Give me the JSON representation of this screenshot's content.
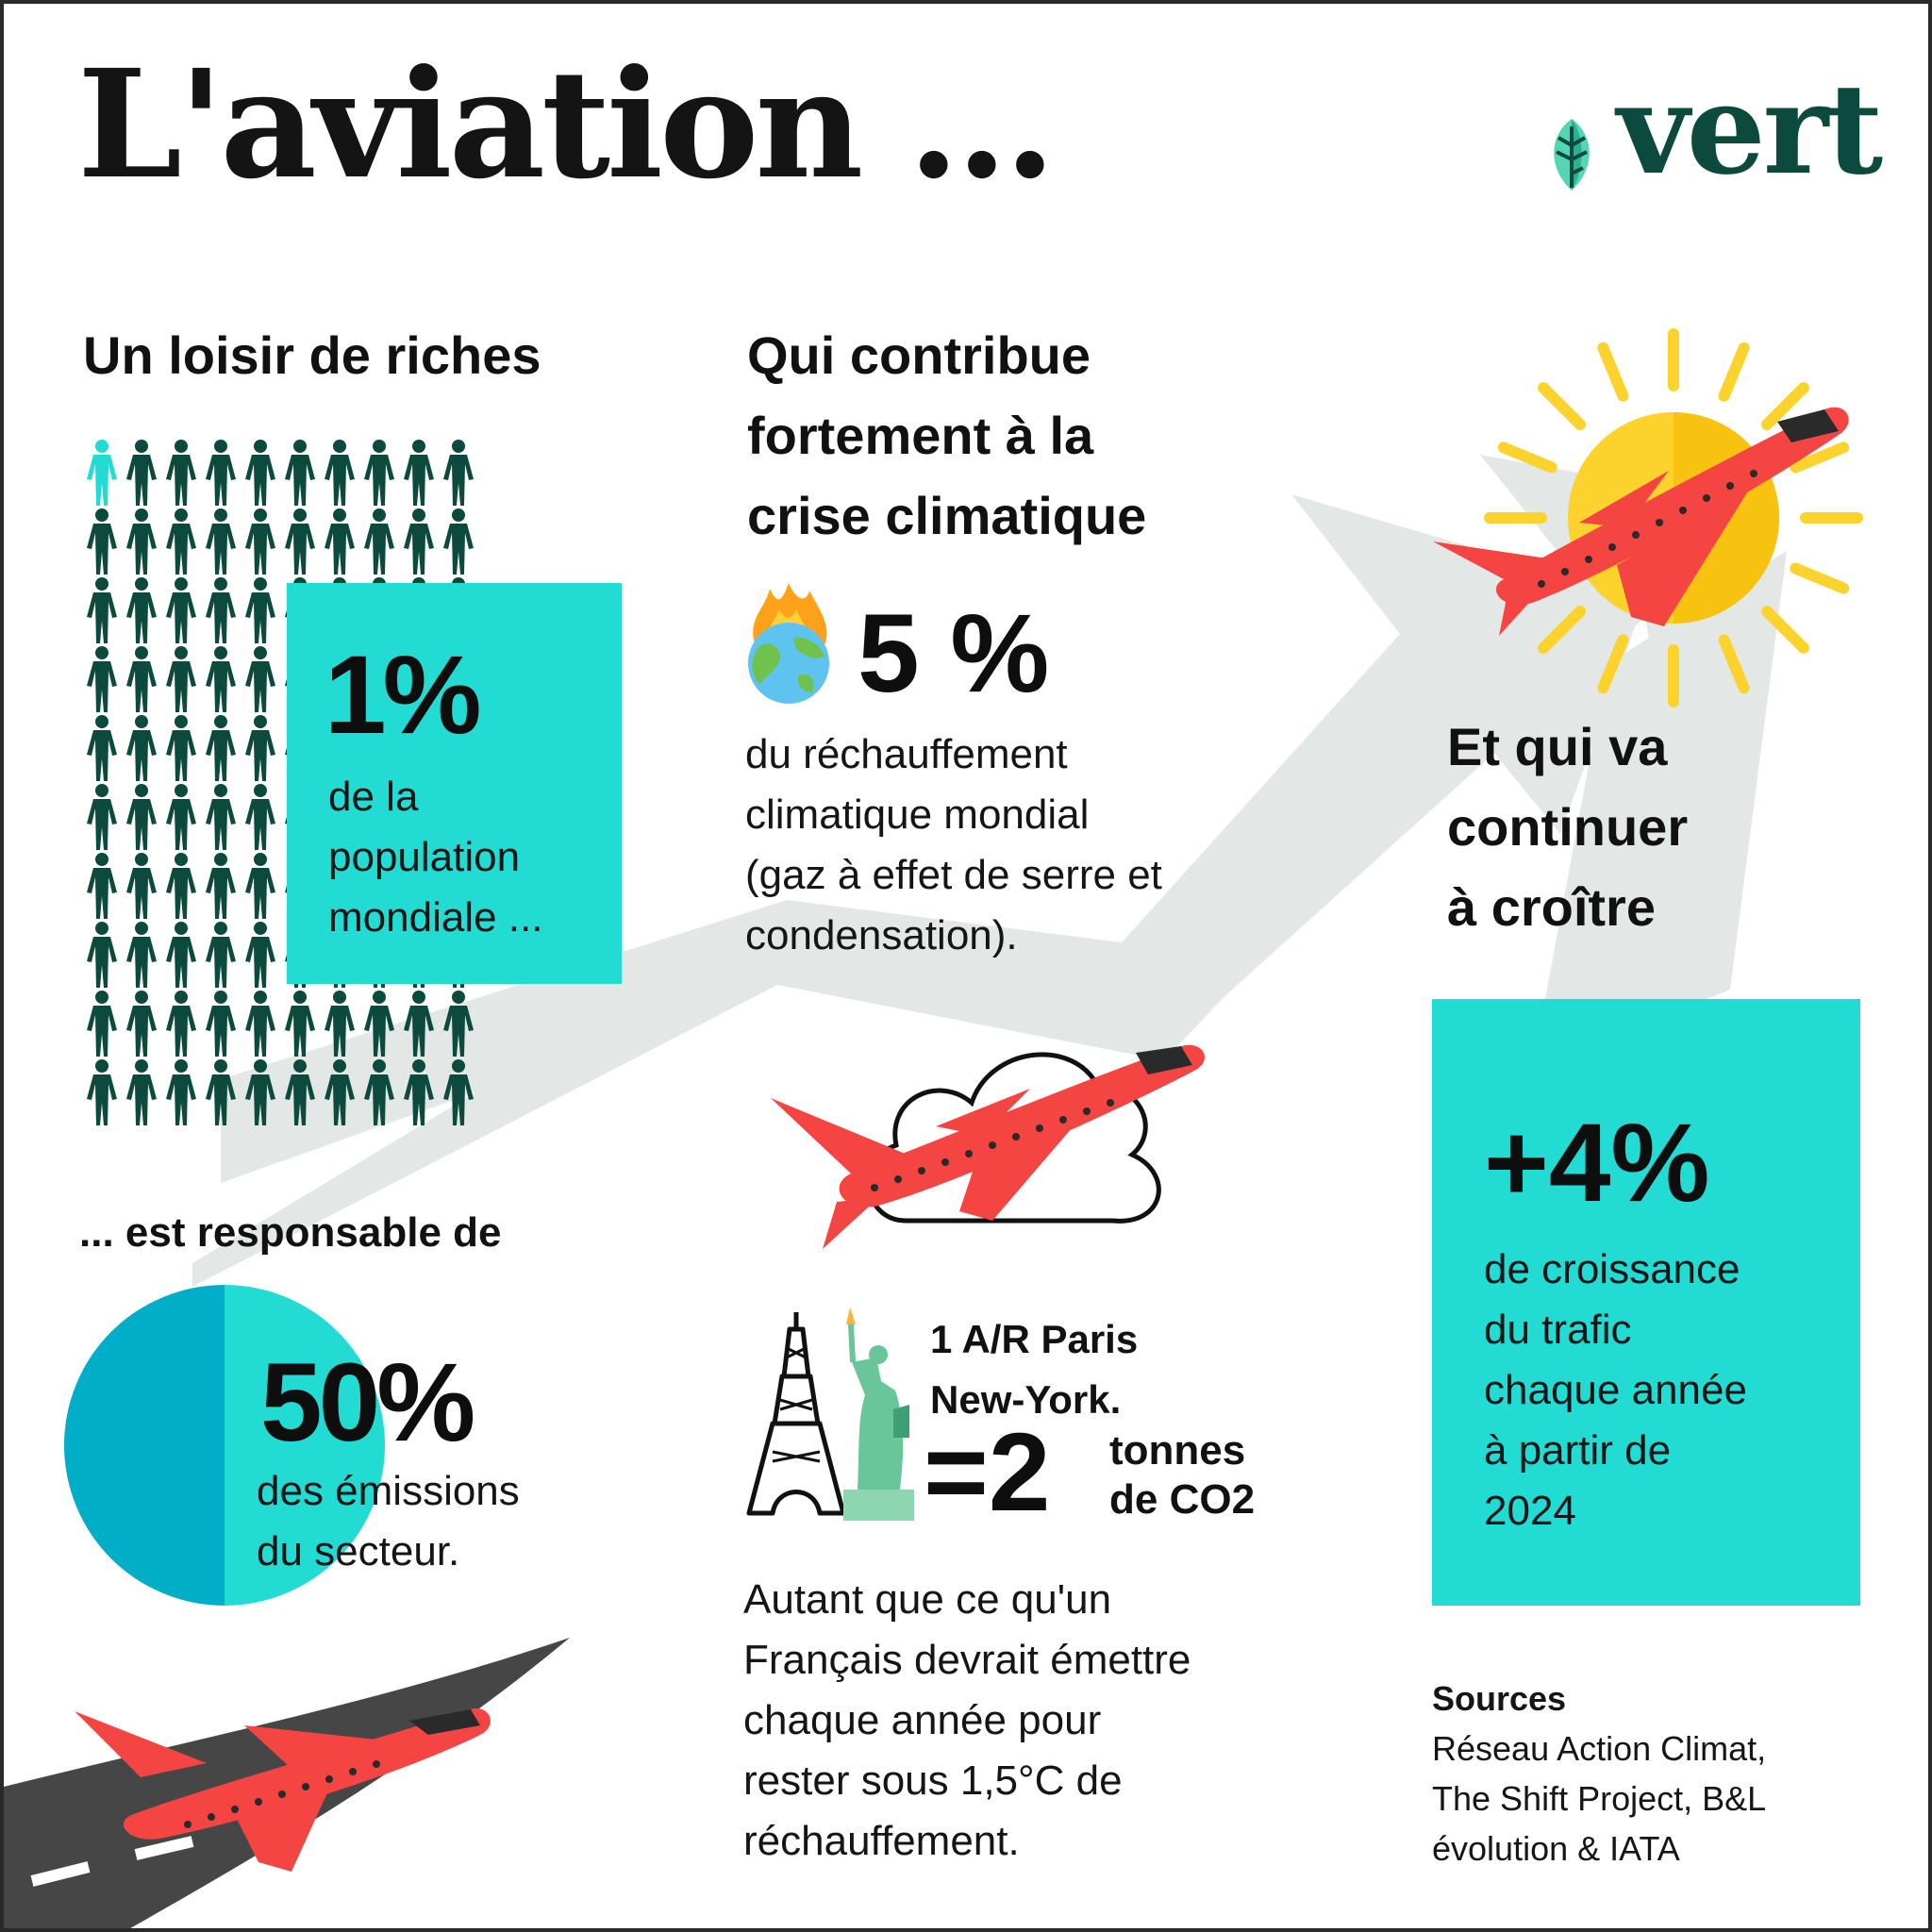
{
  "title": "L'aviation ...",
  "logo": {
    "text": "vert",
    "icon": "leaf-icon"
  },
  "colors": {
    "teal": "#22dbd2",
    "dark_green": "#0b4a3c",
    "plane_red": "#f44543",
    "sun_yellow": "#fcd22c",
    "arrow_gray": "#e3e7e6",
    "pie_dark": "#00afc7"
  },
  "left": {
    "heading": "Un loisir de riches",
    "people": {
      "rows": 10,
      "cols": 10,
      "highlighted": 1,
      "icon": "person-icon"
    },
    "stat_box": {
      "value": "1%",
      "lines": [
        "de la",
        "population",
        "mondiale ..."
      ]
    },
    "responsible": "... est responsable de",
    "pie": {
      "share": 0.5,
      "value": "50%",
      "lines": [
        "des émissions",
        "du secteur."
      ]
    }
  },
  "middle": {
    "heading_lines": [
      "Qui contribue",
      "fortement à la",
      "crise climatique"
    ],
    "warming": {
      "icon": "burning-earth-icon",
      "value": "5 %",
      "lines": [
        "du réchauffement",
        "climatique mondial",
        "(gaz à effet de serre et",
        "condensation)."
      ]
    },
    "trip": {
      "label_lines": [
        "1 A/R Paris",
        "New-York."
      ],
      "equals": "=2",
      "unit_lines": [
        "tonnes",
        "de CO2"
      ]
    },
    "comparison_lines": [
      "Autant que ce qu'un",
      "Français devrait émettre",
      "chaque année pour",
      "rester sous 1,5°C de",
      "réchauffement."
    ]
  },
  "right": {
    "heading_lines": [
      "Et qui va",
      "continuer",
      "à croître"
    ],
    "growth_box": {
      "value": "+4%",
      "lines": [
        "de croissance",
        "du trafic",
        "chaque année",
        "à partir de",
        "2024"
      ]
    },
    "sources": {
      "label": "Sources",
      "lines": [
        "Réseau Action Climat,",
        "The Shift Project,  B&L",
        "évolution & IATA"
      ]
    }
  }
}
